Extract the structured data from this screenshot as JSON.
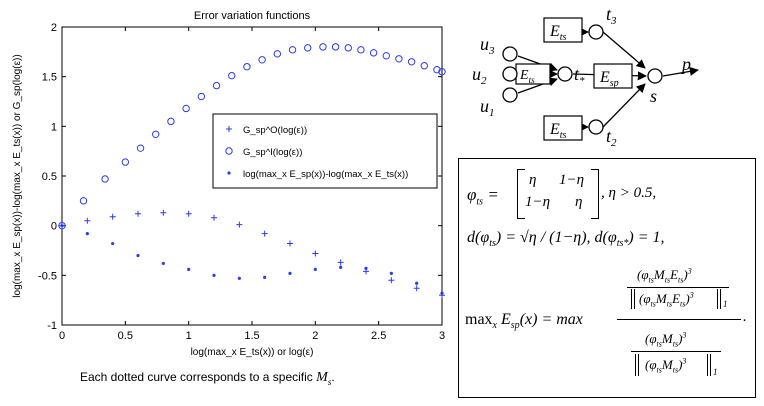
{
  "chart_data": {
    "type": "scatter",
    "title": "Error variation functions",
    "xlabel": "log(max_x E_ts(x))  or  log(ε)",
    "ylabel": "log(max_x E_sp(x))-log(max_x E_ts(x))  or  G_sp(log(ε))",
    "xlim": [
      0,
      3
    ],
    "ylim": [
      -1,
      2
    ],
    "xticks": [
      "0",
      "0.5",
      "1",
      "1.5",
      "2",
      "2.5",
      "3"
    ],
    "yticks": [
      "-1",
      "-0.5",
      "0",
      "0.5",
      "1",
      "1.5",
      "2"
    ],
    "grid": false,
    "legend_position": "center-right",
    "legend": [
      {
        "marker": "+",
        "label": "G_sp^O(log(ε))"
      },
      {
        "marker": "o",
        "label": "G_sp^I(log(ε))"
      },
      {
        "marker": "·",
        "label": "log(max_x E_sp(x))-log(max_x E_ts(x))"
      }
    ],
    "series": [
      {
        "name": "G_sp^I(log(ε))",
        "marker": "o",
        "x": [
          0.0,
          0.17,
          0.34,
          0.5,
          0.62,
          0.74,
          0.86,
          0.98,
          1.1,
          1.22,
          1.34,
          1.46,
          1.58,
          1.7,
          1.82,
          1.94,
          2.06,
          2.16,
          2.26,
          2.36,
          2.46,
          2.56,
          2.66,
          2.76,
          2.86,
          2.96,
          3.0
        ],
        "y": [
          0.0,
          0.25,
          0.47,
          0.64,
          0.78,
          0.92,
          1.05,
          1.18,
          1.3,
          1.41,
          1.51,
          1.6,
          1.67,
          1.73,
          1.77,
          1.79,
          1.8,
          1.8,
          1.79,
          1.77,
          1.74,
          1.71,
          1.68,
          1.65,
          1.61,
          1.57,
          1.55
        ]
      },
      {
        "name": "G_sp^O(log(ε))",
        "marker": "+",
        "x": [
          0.0,
          0.2,
          0.4,
          0.6,
          0.8,
          1.0,
          1.2,
          1.4,
          1.6,
          1.8,
          2.0,
          2.2,
          2.4,
          2.6,
          2.8,
          3.0
        ],
        "y": [
          0.0,
          0.05,
          0.09,
          0.12,
          0.13,
          0.12,
          0.08,
          0.01,
          -0.08,
          -0.18,
          -0.28,
          -0.37,
          -0.46,
          -0.55,
          -0.63,
          -0.7
        ]
      },
      {
        "name": "log(max_x E_sp(x))-log(max_x E_ts(x))",
        "marker": "·",
        "x": [
          0.0,
          0.2,
          0.4,
          0.6,
          0.8,
          1.0,
          1.2,
          1.4,
          1.6,
          1.8,
          2.0,
          2.2,
          2.4,
          2.6,
          2.8,
          3.0
        ],
        "y": [
          0.0,
          -0.08,
          -0.18,
          -0.3,
          -0.38,
          -0.44,
          -0.5,
          -0.53,
          -0.52,
          -0.48,
          -0.44,
          -0.42,
          -0.43,
          -0.48,
          -0.58,
          -0.68
        ]
      }
    ]
  },
  "caption": {
    "text": "Each dotted curve corresponds to a specific",
    "symbol": "M",
    "symbol_sub": "s",
    "trailing": "."
  },
  "network": {
    "nodes": [
      "u3",
      "u2",
      "u1",
      "t*",
      "t3",
      "t2",
      "s",
      "p"
    ],
    "node_labels": {
      "u3": "u",
      "u3_sub": "3",
      "u2": "u",
      "u2_sub": "2",
      "u1": "u",
      "u1_sub": "1",
      "t": "t",
      "t_star_sub": "*",
      "t3_sub": "3",
      "t2_sub": "2",
      "s": "s",
      "p": "p"
    },
    "edge_labels": {
      "ets": "E",
      "ets_sub": "ts",
      "esp": "E",
      "esp_sub": "sp"
    }
  },
  "formula": {
    "phi": "φ",
    "phi_sub": "ts",
    "matrix": [
      [
        "η",
        "1−η"
      ],
      [
        "1−η",
        "η"
      ]
    ],
    "cond": ", η > 0.5,",
    "line2_a": "d(φ",
    "line2_b": ") = √η / (1−η), d(φ",
    "line2_c": ") = 1,",
    "star": "*",
    "max_label": "max",
    "max_sub": "x",
    "esp": "E",
    "esp_sub": "sp",
    "of_x": "(x) = max",
    "num_text": "(φ",
    "num_m": "M",
    "num_e": "E",
    "ts": "ts",
    "cube": "3",
    "norm_sub": "1",
    "period": "."
  }
}
